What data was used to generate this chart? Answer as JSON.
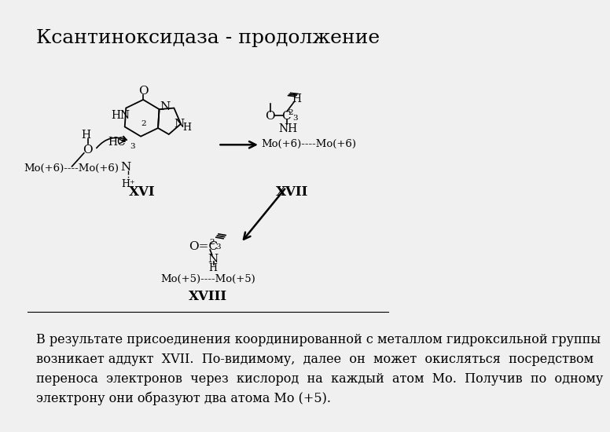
{
  "title": "Ксантиноксидаза - продолжение",
  "title_fontsize": 18,
  "bg_color": "#f0f0f0",
  "body_text": "В результате присоединения координированной с металлом гидроксильной группы\nвозникает аддукт  XVII.  По-видимому,  далее  он  может  окисляться  посредством\nпереноса  электронов  через  кислород  на  каждый  атом  Мо.  Получив  по  одному\nэлектрону они образуют два атома Мо (+5).",
  "body_fontsize": 11.5,
  "XVI_label": "XVI",
  "XVII_label": "XVII",
  "XVIII_label": "XVIII",
  "mo66_left": "Mo(+6)----Mo(+6)",
  "mo66_right": "Mo(+6)----Mo(+6)",
  "mo55": "Mo(+5)----Mo(+5)",
  "label_fontsize": 12
}
